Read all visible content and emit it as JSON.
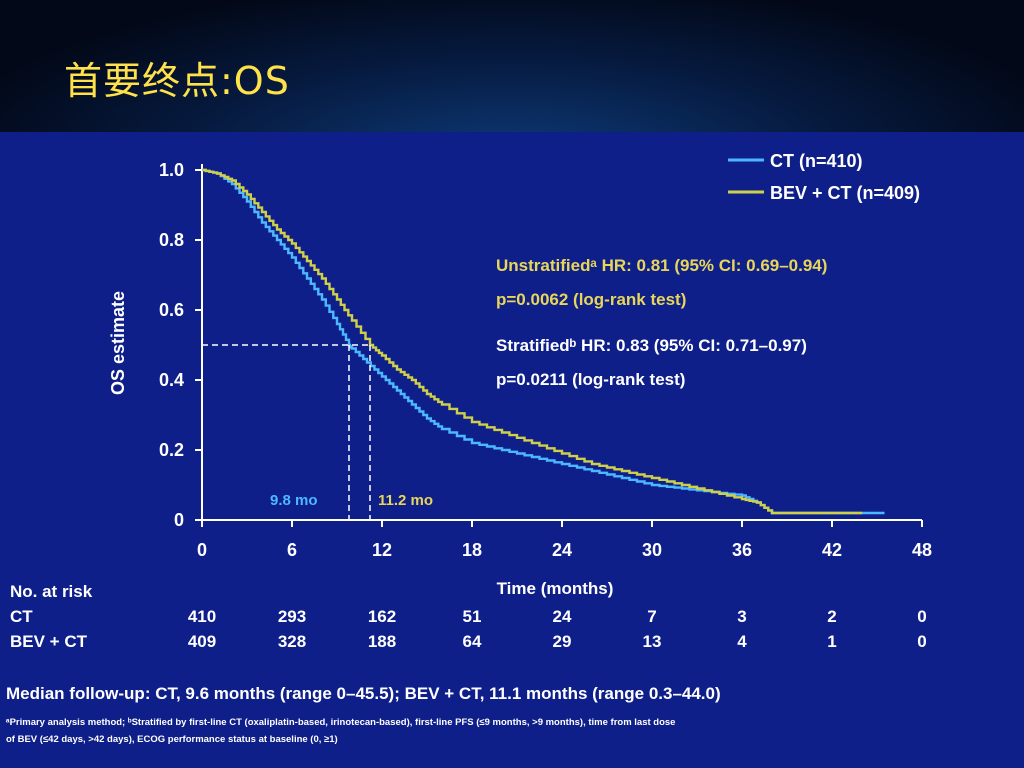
{
  "title": "首要终点:OS",
  "chart_data": {
    "type": "line",
    "ylabel": "OS estimate",
    "xlabel": "Time (months)",
    "xlim": [
      0,
      48
    ],
    "ylim": [
      0,
      1.0
    ],
    "x_ticks": [
      "0",
      "6",
      "12",
      "18",
      "24",
      "30",
      "36",
      "42",
      "48"
    ],
    "y_ticks": [
      "0",
      "0.2",
      "0.4",
      "0.6",
      "0.8",
      "1.0"
    ],
    "grid": false,
    "legend_position": "top-right",
    "series": [
      {
        "name": "CT (n=410)",
        "color": "#4cb8ff",
        "points": [
          [
            0,
            1.0
          ],
          [
            1,
            0.99
          ],
          [
            2,
            0.96
          ],
          [
            3,
            0.91
          ],
          [
            4,
            0.85
          ],
          [
            5,
            0.8
          ],
          [
            6,
            0.75
          ],
          [
            7,
            0.69
          ],
          [
            8,
            0.63
          ],
          [
            9,
            0.56
          ],
          [
            9.8,
            0.5
          ],
          [
            10,
            0.49
          ],
          [
            11,
            0.45
          ],
          [
            12,
            0.41
          ],
          [
            13,
            0.37
          ],
          [
            14,
            0.33
          ],
          [
            15,
            0.29
          ],
          [
            16,
            0.26
          ],
          [
            18,
            0.22
          ],
          [
            20,
            0.2
          ],
          [
            22,
            0.18
          ],
          [
            24,
            0.16
          ],
          [
            26,
            0.14
          ],
          [
            28,
            0.12
          ],
          [
            30,
            0.1
          ],
          [
            32,
            0.09
          ],
          [
            34,
            0.08
          ],
          [
            36,
            0.07
          ],
          [
            37,
            0.05
          ],
          [
            38,
            0.02
          ],
          [
            42,
            0.02
          ],
          [
            45.5,
            0.02
          ]
        ]
      },
      {
        "name": "BEV + CT (n=409)",
        "color": "#cfd04a",
        "points": [
          [
            0,
            1.0
          ],
          [
            1,
            0.99
          ],
          [
            2,
            0.97
          ],
          [
            3,
            0.93
          ],
          [
            4,
            0.88
          ],
          [
            5,
            0.83
          ],
          [
            6,
            0.79
          ],
          [
            7,
            0.74
          ],
          [
            8,
            0.69
          ],
          [
            9,
            0.63
          ],
          [
            10,
            0.57
          ],
          [
            11.2,
            0.5
          ],
          [
            12,
            0.47
          ],
          [
            13,
            0.43
          ],
          [
            14,
            0.4
          ],
          [
            15,
            0.36
          ],
          [
            16,
            0.33
          ],
          [
            18,
            0.28
          ],
          [
            20,
            0.25
          ],
          [
            22,
            0.22
          ],
          [
            24,
            0.19
          ],
          [
            26,
            0.16
          ],
          [
            28,
            0.14
          ],
          [
            30,
            0.12
          ],
          [
            32,
            0.1
          ],
          [
            34,
            0.08
          ],
          [
            36,
            0.06
          ],
          [
            37,
            0.05
          ],
          [
            38,
            0.02
          ],
          [
            42,
            0.02
          ],
          [
            44,
            0.02
          ]
        ]
      }
    ],
    "medians": {
      "ct_label": "9.8 mo",
      "ct_value": 9.8,
      "bev_label": "11.2 mo",
      "bev_value": 11.2,
      "level": 0.5
    },
    "annotations": {
      "unstrat_line1": "Unstratifiedᵃ HR: 0.81 (95% CI: 0.69–0.94)",
      "unstrat_line2": "p=0.0062 (log-rank test)",
      "strat_line1": "Stratifiedᵇ HR: 0.83 (95% CI: 0.71–0.97)",
      "strat_line2": "p=0.0211 (log-rank test)"
    },
    "risk_table": {
      "header": "No. at risk",
      "rows": [
        {
          "label": "CT",
          "values": [
            "410",
            "293",
            "162",
            "51",
            "24",
            "7",
            "3",
            "2",
            "0"
          ]
        },
        {
          "label": "BEV + CT",
          "values": [
            "409",
            "328",
            "188",
            "64",
            "29",
            "13",
            "4",
            "1",
            "0"
          ]
        }
      ]
    },
    "footer": "Median follow-up:  CT, 9.6 months (range 0–45.5); BEV + CT, 11.1 months (range 0.3–44.0)",
    "footnote1": "ᵃPrimary analysis method; ᵇStratified by first-line CT (oxaliplatin-based, irinotecan-based), first-line PFS (≤9 months, >9 months), time from last dose",
    "footnote2": "of BEV (≤42 days, >42 days), ECOG performance status at baseline (0, ≥1)"
  }
}
